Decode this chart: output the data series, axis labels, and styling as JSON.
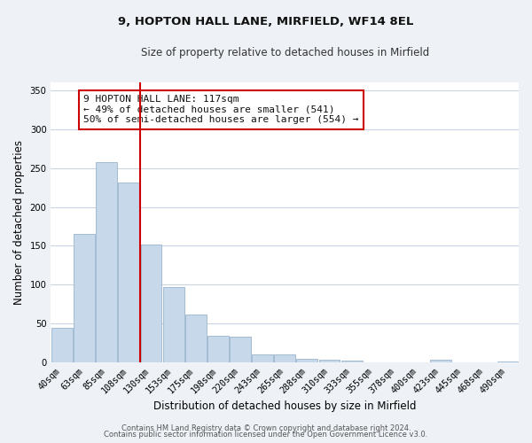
{
  "title": "9, HOPTON HALL LANE, MIRFIELD, WF14 8EL",
  "subtitle": "Size of property relative to detached houses in Mirfield",
  "xlabel": "Distribution of detached houses by size in Mirfield",
  "ylabel": "Number of detached properties",
  "bar_color": "#c8d8eb",
  "bar_edge_color": "#9ab5cc",
  "categories": [
    "40sqm",
    "63sqm",
    "85sqm",
    "108sqm",
    "130sqm",
    "153sqm",
    "175sqm",
    "198sqm",
    "220sqm",
    "243sqm",
    "265sqm",
    "288sqm",
    "310sqm",
    "333sqm",
    "355sqm",
    "378sqm",
    "400sqm",
    "423sqm",
    "445sqm",
    "468sqm",
    "490sqm"
  ],
  "values": [
    45,
    165,
    258,
    231,
    152,
    97,
    62,
    34,
    33,
    10,
    10,
    5,
    3,
    2,
    0,
    0,
    0,
    4,
    0,
    0,
    1
  ],
  "ylim": [
    0,
    360
  ],
  "yticks": [
    0,
    50,
    100,
    150,
    200,
    250,
    300,
    350
  ],
  "marker_color": "#cc0000",
  "annotation_title": "9 HOPTON HALL LANE: 117sqm",
  "annotation_line1": "← 49% of detached houses are smaller (541)",
  "annotation_line2": "50% of semi-detached houses are larger (554) →",
  "annotation_box_color": "#ffffff",
  "annotation_box_edge": "#cc0000",
  "footer_line1": "Contains HM Land Registry data © Crown copyright and database right 2024.",
  "footer_line2": "Contains public sector information licensed under the Open Government Licence v3.0.",
  "background_color": "#eef2f7",
  "plot_bg_color": "#ffffff",
  "grid_color": "#c8d4e0"
}
